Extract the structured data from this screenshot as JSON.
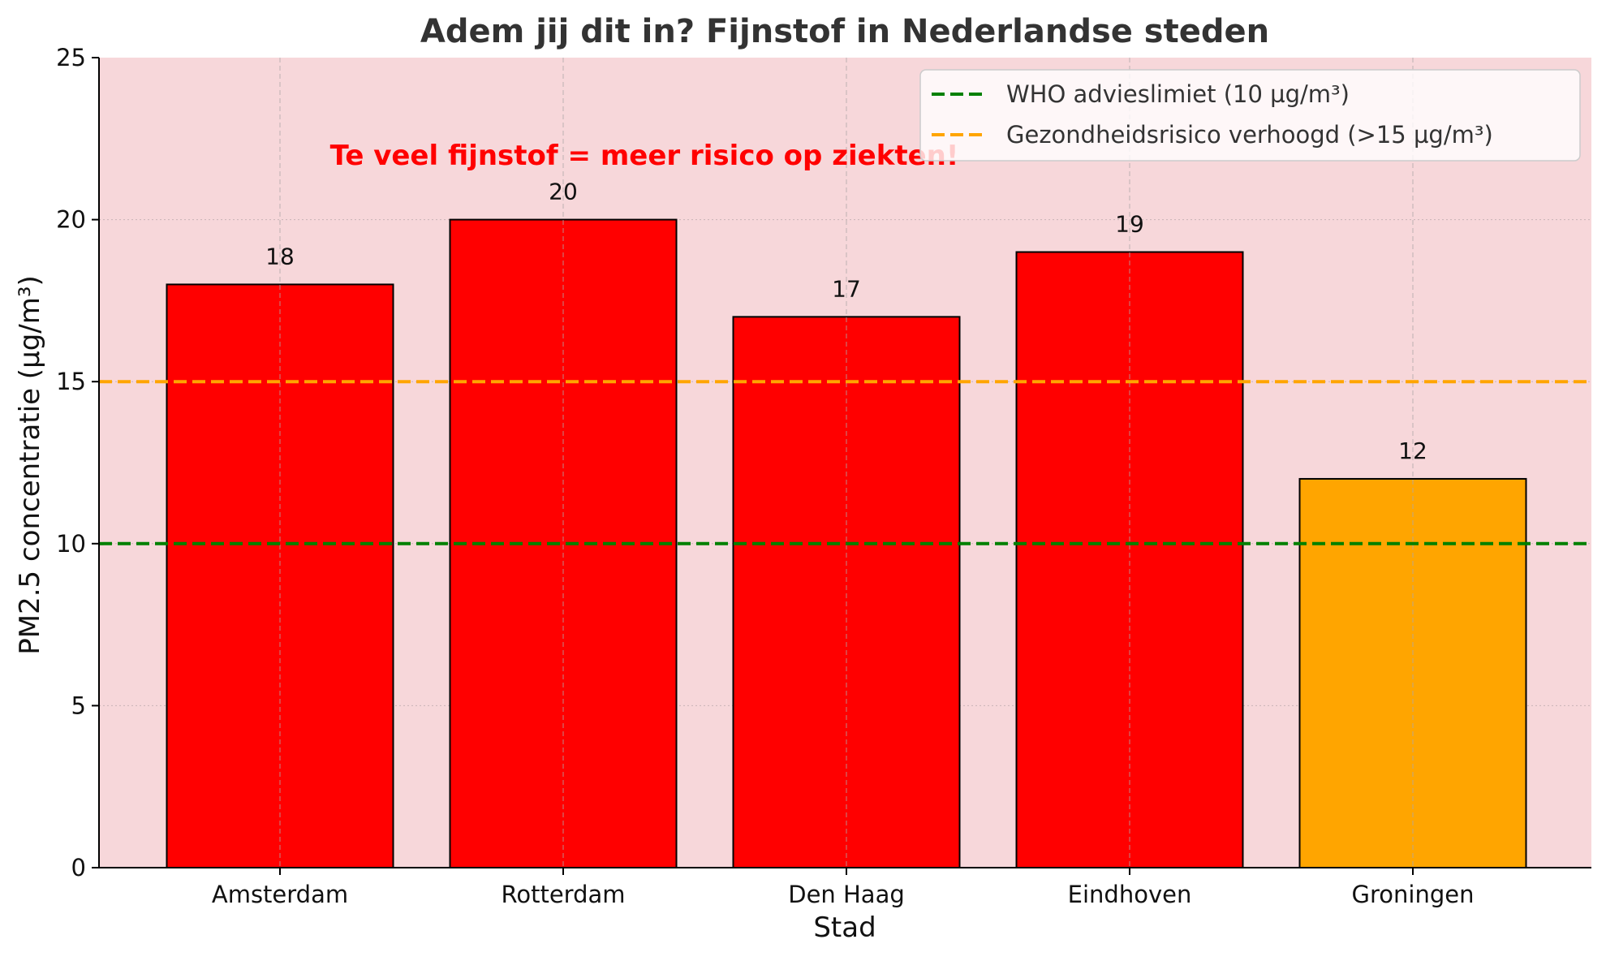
{
  "chart_data": {
    "type": "bar",
    "title": "Adem jij dit in? Fijnstof in Nederlandse steden",
    "xlabel": "Stad",
    "ylabel": "PM2.5 concentratie (µg/m³)",
    "categories": [
      "Amsterdam",
      "Rotterdam",
      "Den Haag",
      "Eindhoven",
      "Groningen"
    ],
    "values": [
      18,
      20,
      17,
      19,
      12
    ],
    "bar_colors": [
      "#ff0000",
      "#ff0000",
      "#ff0000",
      "#ff0000",
      "#ffa500"
    ],
    "ylim": [
      0,
      25
    ],
    "yticks": [
      0,
      5,
      10,
      15,
      20,
      25
    ],
    "grid": true,
    "background_color": "#f7d7da",
    "reference_lines": [
      {
        "label": "WHO advieslimiet (10 µg/m³)",
        "value": 10,
        "color": "#008000",
        "style": "dashed"
      },
      {
        "label": "Gezondheidsrisico verhoogd (>15 µg/m³)",
        "value": 15,
        "color": "#ffa500",
        "style": "dashed"
      }
    ],
    "legend_position": "top-right",
    "annotation": {
      "text": "Te veel fijnstof = meer risico op ziekten!",
      "x_category": "Rotterdam",
      "y": 22,
      "color": "#ff0000"
    }
  }
}
